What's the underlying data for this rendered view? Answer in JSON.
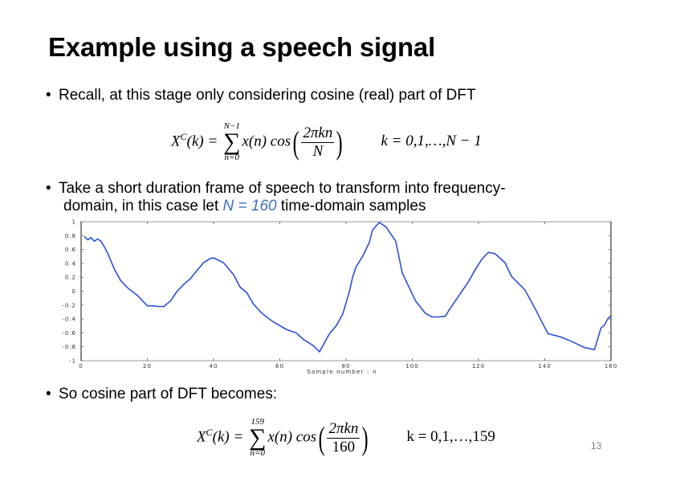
{
  "slide": {
    "title": "Example using a speech signal",
    "page_number": "13",
    "bullets": [
      {
        "text": "Recall, at this stage only considering cosine (real) part of DFT"
      },
      {
        "line1": "Take a short duration frame of speech to transform into frequency-",
        "line2_pre": "domain, in this case let ",
        "line2_highlight": "N = 160",
        "line2_post": " time-domain samples"
      },
      {
        "text": "So cosine part of DFT becomes:"
      }
    ],
    "equation1": {
      "lhs": "X",
      "sup": "C",
      "arg": "(k) =",
      "sum_upper": "N−1",
      "sum_lower": "n=0",
      "term": "x(n) cos",
      "num": "2πkn",
      "den": "N",
      "range": "k = 0,1,…,N − 1"
    },
    "equation2": {
      "lhs": "X",
      "sup": "C",
      "arg": "(k) =",
      "sum_upper": "159",
      "sum_lower": "n=0",
      "term": "x(n) cos",
      "num": "2πkn",
      "den": "160",
      "range": "k = 0,1,…,159"
    },
    "highlight_color": "#3e6ec7"
  },
  "chart_data": {
    "type": "line",
    "title": "",
    "xlabel": "Sample number : n",
    "ylabel": "",
    "xlim": [
      0,
      160
    ],
    "ylim": [
      -1,
      1
    ],
    "xticks": [
      "0",
      "20",
      "40",
      "60",
      "80",
      "100",
      "120",
      "140",
      "160"
    ],
    "yticks": [
      "1",
      "0.8",
      "0.6",
      "0.4",
      "0.2",
      "0",
      "-0.2",
      "-0.4",
      "-0.6",
      "-0.8",
      "-1"
    ],
    "grid": false,
    "line_color": "#2d4fd6",
    "series": [
      {
        "name": "x(n)",
        "x": [
          1,
          2,
          3,
          4,
          5,
          6,
          7,
          8,
          10,
          12,
          14,
          17,
          20,
          22,
          23,
          25,
          27,
          29,
          31,
          33,
          35,
          37,
          39,
          40,
          43,
          46,
          48,
          50,
          52,
          54,
          56,
          58,
          62,
          65,
          67,
          70,
          72,
          75,
          77,
          79,
          80,
          81,
          82,
          83,
          85,
          87,
          88,
          90,
          92,
          95,
          97,
          99,
          101,
          104,
          106,
          108,
          110,
          111,
          113,
          115,
          117,
          119,
          121,
          123,
          125,
          128,
          130,
          134,
          137,
          139,
          141,
          145,
          148,
          152,
          155,
          157,
          158,
          159,
          160
        ],
        "values": [
          0.79,
          0.74,
          0.77,
          0.72,
          0.75,
          0.72,
          0.64,
          0.55,
          0.32,
          0.15,
          0.05,
          -0.06,
          -0.21,
          -0.21,
          -0.22,
          -0.22,
          -0.14,
          0.0,
          0.1,
          0.18,
          0.3,
          0.41,
          0.47,
          0.48,
          0.41,
          0.24,
          0.06,
          -0.02,
          -0.18,
          -0.29,
          -0.37,
          -0.44,
          -0.55,
          -0.6,
          -0.69,
          -0.78,
          -0.87,
          -0.61,
          -0.5,
          -0.33,
          -0.17,
          -0.01,
          0.2,
          0.35,
          0.5,
          0.7,
          0.88,
          0.99,
          0.93,
          0.72,
          0.26,
          0.06,
          -0.14,
          -0.32,
          -0.37,
          -0.37,
          -0.36,
          -0.28,
          -0.14,
          0.0,
          0.14,
          0.31,
          0.46,
          0.56,
          0.54,
          0.41,
          0.21,
          0.02,
          -0.24,
          -0.43,
          -0.61,
          -0.66,
          -0.72,
          -0.81,
          -0.84,
          -0.53,
          -0.49,
          -0.4,
          -0.35
        ]
      }
    ]
  }
}
